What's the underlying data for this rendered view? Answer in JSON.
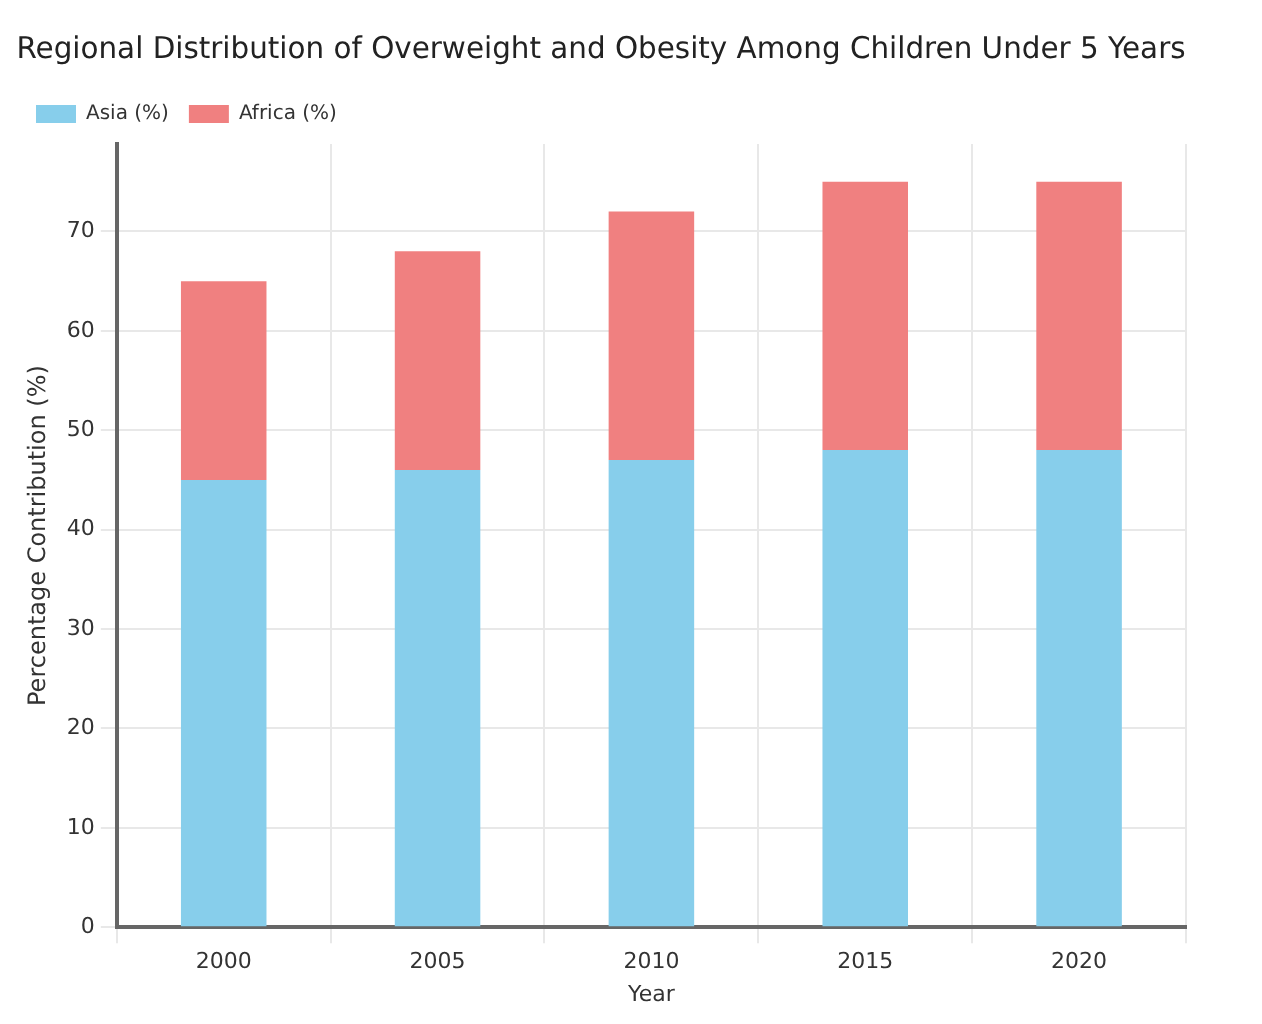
{
  "chart_data": {
    "type": "bar",
    "title": "Regional Distribution of Overweight and Obesity Among Children Under 5 Years",
    "xlabel": "Year",
    "ylabel": "Percentage Contribution (%)",
    "categories": [
      "2000",
      "2005",
      "2010",
      "2015",
      "2020"
    ],
    "series": [
      {
        "name": "Asia (%)",
        "color": "#87ceeb",
        "values": [
          45,
          46,
          47,
          48,
          48
        ]
      },
      {
        "name": "Africa (%)",
        "color": "#f08080",
        "values": [
          20,
          22,
          25,
          27,
          27
        ]
      }
    ],
    "stacked": true,
    "ylim": [
      0,
      78.8
    ],
    "yticks": [
      0,
      10,
      20,
      30,
      40,
      50,
      60,
      70
    ],
    "grid": true,
    "legend": "top left"
  }
}
